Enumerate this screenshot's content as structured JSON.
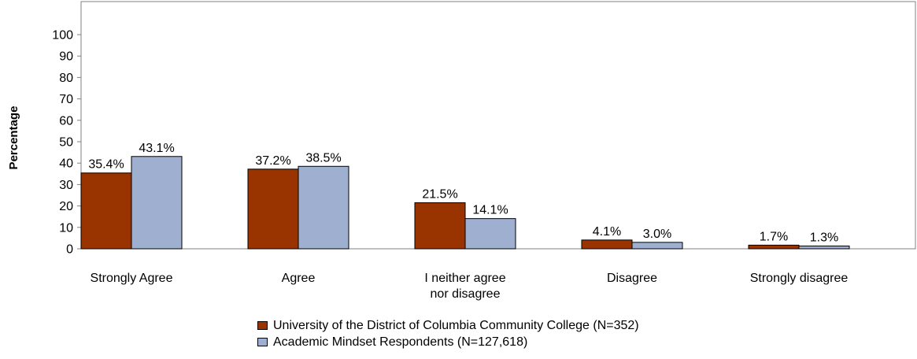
{
  "chart_data": {
    "type": "bar",
    "title": "",
    "xlabel": "",
    "ylabel": "Percentage",
    "ylim": [
      0,
      100
    ],
    "yticks": [
      "0",
      "10",
      "20",
      "30",
      "40",
      "50",
      "60",
      "70",
      "80",
      "90",
      "100"
    ],
    "categories": [
      [
        "Strongly Agree"
      ],
      [
        "Agree"
      ],
      [
        "I neither agree",
        "nor disagree"
      ],
      [
        "Disagree"
      ],
      [
        "Strongly disagree"
      ]
    ],
    "series": [
      {
        "name": "University of the District of Columbia Community College (N=352)",
        "color": "#993300",
        "values": [
          35.4,
          37.2,
          21.5,
          4.1,
          1.7
        ],
        "labels": [
          "35.4%",
          "37.2%",
          "21.5%",
          "4.1%",
          "1.7%"
        ]
      },
      {
        "name": "Academic Mindset Respondents (N=127,618)",
        "color": "#9FAFD0",
        "values": [
          43.1,
          38.5,
          14.1,
          3.0,
          1.3
        ],
        "labels": [
          "43.1%",
          "38.5%",
          "14.1%",
          "3.0%",
          "1.3%"
        ]
      }
    ],
    "grid": false,
    "legend_position": "bottom-center"
  }
}
